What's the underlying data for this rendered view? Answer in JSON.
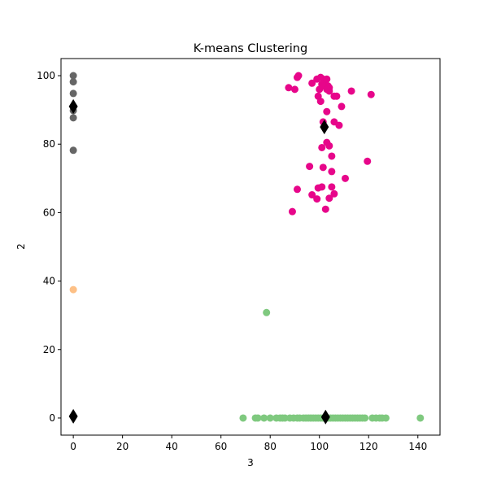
{
  "chart_data": {
    "type": "scatter",
    "title": "K-means Clustering",
    "xlabel": "3",
    "ylabel": "2",
    "xlim": [
      -5,
      149
    ],
    "ylim": [
      -5,
      105
    ],
    "xticks": [
      0,
      20,
      40,
      60,
      80,
      100,
      120,
      140
    ],
    "yticks": [
      0,
      20,
      40,
      60,
      80,
      100
    ],
    "grid": false,
    "legend": "none",
    "series": [
      {
        "color": "#e7068a",
        "marker": "circle",
        "points": [
          [
            91,
            99.5
          ],
          [
            91.5,
            100
          ],
          [
            99,
            99
          ],
          [
            100.5,
            99.5
          ],
          [
            101.5,
            99
          ],
          [
            102.5,
            98.5
          ],
          [
            103,
            99
          ],
          [
            97,
            97.8
          ],
          [
            101,
            97.5
          ],
          [
            102,
            97
          ],
          [
            103.5,
            97
          ],
          [
            104,
            96.5
          ],
          [
            103,
            96
          ],
          [
            104,
            95.5
          ],
          [
            100,
            96
          ],
          [
            106,
            94
          ],
          [
            107,
            94
          ],
          [
            113,
            95.5
          ],
          [
            121,
            94.5
          ],
          [
            99.5,
            94
          ],
          [
            100.5,
            92.5
          ],
          [
            109,
            91
          ],
          [
            103,
            89.5
          ],
          [
            101.5,
            86.5
          ],
          [
            106,
            86.5
          ],
          [
            108,
            85.5
          ],
          [
            87.5,
            96.5
          ],
          [
            90,
            96
          ],
          [
            103,
            80.5
          ],
          [
            104,
            79.5
          ],
          [
            101,
            79
          ],
          [
            105,
            76.5
          ],
          [
            119.5,
            75
          ],
          [
            96,
            73.5
          ],
          [
            101.5,
            73.2
          ],
          [
            105,
            72
          ],
          [
            110.5,
            70
          ],
          [
            91,
            66.8
          ],
          [
            99.5,
            67.2
          ],
          [
            101,
            67.5
          ],
          [
            105,
            67.5
          ],
          [
            97,
            65.2
          ],
          [
            106,
            65.5
          ],
          [
            99,
            64
          ],
          [
            104,
            64.2
          ],
          [
            89,
            60.3
          ],
          [
            102.5,
            61
          ]
        ]
      },
      {
        "color": "#666666",
        "marker": "circle",
        "points": [
          [
            0,
            100
          ],
          [
            0,
            98.2
          ],
          [
            0,
            94.8
          ],
          [
            0,
            91
          ],
          [
            0,
            89.8
          ],
          [
            0,
            87.7
          ],
          [
            0,
            78.2
          ]
        ]
      },
      {
        "color": "#fdc086",
        "marker": "circle",
        "points": [
          [
            0,
            37.5
          ]
        ]
      },
      {
        "color": "#7fc97f",
        "marker": "circle",
        "points": [
          [
            78.5,
            30.8
          ],
          [
            69,
            0
          ],
          [
            74,
            0
          ],
          [
            75,
            0
          ],
          [
            77.5,
            0
          ],
          [
            80,
            0
          ],
          [
            82.5,
            0
          ],
          [
            84,
            0
          ],
          [
            85,
            0
          ],
          [
            86,
            0
          ],
          [
            88,
            0
          ],
          [
            89.5,
            0
          ],
          [
            91,
            0
          ],
          [
            92,
            0
          ],
          [
            93.5,
            0
          ],
          [
            94.5,
            0
          ],
          [
            95.5,
            0
          ],
          [
            96.5,
            0
          ],
          [
            97.5,
            0
          ],
          [
            98.5,
            0
          ],
          [
            99.5,
            0
          ],
          [
            100.5,
            0
          ],
          [
            101.5,
            0
          ],
          [
            102.5,
            0
          ],
          [
            103.5,
            0
          ],
          [
            104.5,
            0
          ],
          [
            105.5,
            0
          ],
          [
            106.5,
            0
          ],
          [
            107.5,
            0
          ],
          [
            108.5,
            0
          ],
          [
            109.5,
            0
          ],
          [
            110.5,
            0
          ],
          [
            111.5,
            0
          ],
          [
            112.5,
            0
          ],
          [
            113.5,
            0
          ],
          [
            114.5,
            0
          ],
          [
            115.5,
            0
          ],
          [
            116.5,
            0
          ],
          [
            117.5,
            0
          ],
          [
            118.5,
            0
          ],
          [
            121.5,
            0
          ],
          [
            123,
            0
          ],
          [
            124.5,
            0
          ],
          [
            125.5,
            0
          ],
          [
            127,
            0
          ],
          [
            141,
            0
          ]
        ]
      }
    ],
    "centroids": {
      "color": "#000000",
      "marker": "diamond",
      "points": [
        [
          0,
          91
        ],
        [
          102,
          85
        ],
        [
          0,
          0.5
        ],
        [
          102.5,
          0.3
        ]
      ]
    }
  }
}
